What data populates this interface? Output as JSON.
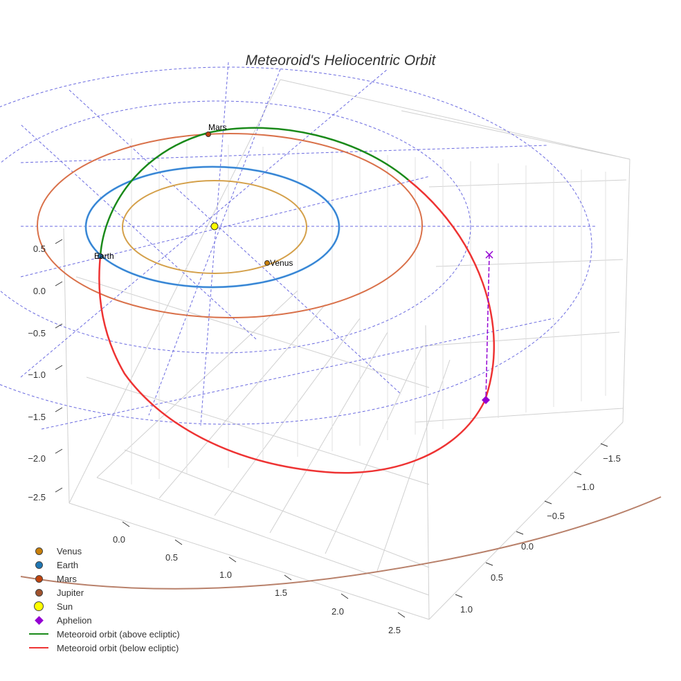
{
  "chart_data": {
    "type": "scatter3d",
    "title": "Meteoroid's Heliocentric Orbit",
    "z_ticks": [
      "0.5",
      "0.0",
      "−0.5",
      "−1.0",
      "−1.5",
      "−2.0",
      "−2.5"
    ],
    "x_ticks": [
      "0.0",
      "0.5",
      "1.0",
      "1.5",
      "2.0",
      "2.5"
    ],
    "y_ticks": [
      "−1.5",
      "−1.0",
      "−0.5",
      "0.0",
      "0.5",
      "1.0"
    ],
    "zlim": [
      -2.5,
      0.5
    ],
    "xlim": [
      0.0,
      2.5
    ],
    "ylim": [
      -1.5,
      1.0
    ],
    "points": [
      {
        "name": "Sun",
        "label": "",
        "color": "#ffff00"
      },
      {
        "name": "Venus",
        "label": "Venus",
        "color": "#c87f0a"
      },
      {
        "name": "Earth",
        "label": "Earth",
        "color": "#1f77b4"
      },
      {
        "name": "Mars",
        "label": "Mars",
        "color": "#c1440e"
      },
      {
        "name": "Jupiter",
        "label": "",
        "color": "#a0522d"
      },
      {
        "name": "Aphelion",
        "label": "",
        "color": "#9400d3"
      }
    ],
    "orbits": [
      {
        "name": "Venus orbit",
        "color": "#d4a04a"
      },
      {
        "name": "Earth orbit",
        "color": "#2a78d0"
      },
      {
        "name": "Mars orbit",
        "color": "#d9714a"
      },
      {
        "name": "Jupiter orbit",
        "color": "#b8806a"
      },
      {
        "name": "Meteoroid orbit (above ecliptic)",
        "color": "#1a8a1a"
      },
      {
        "name": "Meteoroid orbit (below ecliptic)",
        "color": "#ee3333"
      }
    ],
    "legend": [
      {
        "label": "Venus",
        "kind": "dot",
        "color": "#c87f0a"
      },
      {
        "label": "Earth",
        "kind": "dot",
        "color": "#1f77b4"
      },
      {
        "label": "Mars",
        "kind": "dot",
        "color": "#c1440e"
      },
      {
        "label": "Jupiter",
        "kind": "dot",
        "color": "#a0522d"
      },
      {
        "label": "Sun",
        "kind": "sun",
        "color": "#ffff00"
      },
      {
        "label": "Aphelion",
        "kind": "diamond",
        "color": "#9400d3"
      },
      {
        "label": "Meteoroid orbit (above ecliptic)",
        "kind": "line",
        "color": "#1a8a1a"
      },
      {
        "label": "Meteoroid orbit (below ecliptic)",
        "kind": "line",
        "color": "#ee3333"
      }
    ],
    "legend_position": "bottom-left"
  }
}
